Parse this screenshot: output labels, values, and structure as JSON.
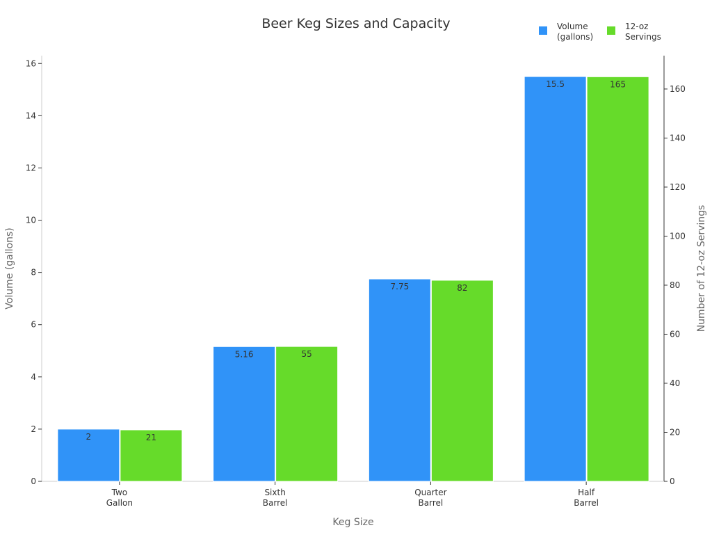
{
  "chart_data": {
    "type": "bar",
    "title": "Beer Keg Sizes and Capacity",
    "xlabel": "Keg Size",
    "ylabel": "Volume (gallons)",
    "y2label": "Number of 12-oz Servings",
    "categories": [
      [
        "Two",
        "Gallon"
      ],
      [
        "Sixth",
        "Barrel"
      ],
      [
        "Quarter",
        "Barrel"
      ],
      [
        "Half",
        "Barrel"
      ]
    ],
    "series": [
      {
        "name": [
          "Volume",
          "(gallons)"
        ],
        "axis": "left",
        "color": "#3093f8",
        "values": [
          2,
          5.16,
          7.75,
          15.5
        ],
        "labels": [
          "2",
          "5.16",
          "7.75",
          "15.5"
        ]
      },
      {
        "name": [
          "12-oz",
          "Servings"
        ],
        "axis": "right",
        "color": "#66db2a",
        "values": [
          21,
          55,
          82,
          165
        ],
        "labels": [
          "21",
          "55",
          "82",
          "165"
        ]
      }
    ],
    "ylim": [
      0,
      16.3
    ],
    "y2lim": [
      0,
      173.6
    ],
    "yticks": [
      0,
      2,
      4,
      6,
      8,
      10,
      12,
      14,
      16
    ],
    "y2ticks": [
      0,
      20,
      40,
      60,
      80,
      100,
      120,
      140,
      160
    ],
    "grid": false,
    "legend": "top-right"
  }
}
